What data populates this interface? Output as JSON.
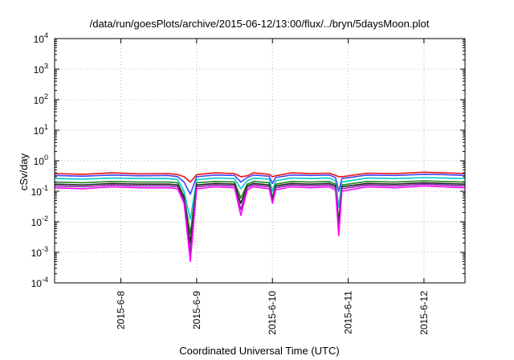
{
  "chart_data": {
    "type": "line",
    "title": "/data/run/goesPlots/archive/2015-06-12/13:00/flux/../bryn/5daysMoon.plot",
    "xlabel": "Coordinated Universal Time (UTC)",
    "ylabel": "cSv/day",
    "yscale": "log",
    "xlim": [
      "2015-06-07 03:00",
      "2015-06-12 13:00"
    ],
    "ylim": [
      0.0001,
      10000
    ],
    "grid": true,
    "legend": "none",
    "y_ticks": [
      {
        "base": "10",
        "exp": "-4",
        "value": 0.0001
      },
      {
        "base": "10",
        "exp": "-3",
        "value": 0.001
      },
      {
        "base": "10",
        "exp": "-2",
        "value": 0.01
      },
      {
        "base": "10",
        "exp": "-1",
        "value": 0.1
      },
      {
        "base": "10",
        "exp": "0",
        "value": 1
      },
      {
        "base": "10",
        "exp": "1",
        "value": 10
      },
      {
        "base": "10",
        "exp": "2",
        "value": 100
      },
      {
        "base": "10",
        "exp": "3",
        "value": 1000
      },
      {
        "base": "10",
        "exp": "4",
        "value": 10000
      }
    ],
    "x_ticks": [
      {
        "label": "2015-6-8",
        "value": "2015-06-08 00:00"
      },
      {
        "label": "2015-6-9",
        "value": "2015-06-09 00:00"
      },
      {
        "label": "2015-6-10",
        "value": "2015-06-10 00:00"
      },
      {
        "label": "2015-6-11",
        "value": "2015-06-11 00:00"
      },
      {
        "label": "2015-6-12",
        "value": "2015-06-12 00:00"
      }
    ],
    "x": [
      "2015-06-07 03:00",
      "2015-06-07 12:00",
      "2015-06-07 21:00",
      "2015-06-08 06:00",
      "2015-06-08 15:00",
      "2015-06-08 18:00",
      "2015-06-08 20:00",
      "2015-06-08 22:00",
      "2015-06-09 00:00",
      "2015-06-09 06:00",
      "2015-06-09 12:00",
      "2015-06-09 14:00",
      "2015-06-09 16:00",
      "2015-06-09 18:00",
      "2015-06-09 23:00",
      "2015-06-10 00:00",
      "2015-06-10 01:00",
      "2015-06-10 06:00",
      "2015-06-10 12:00",
      "2015-06-10 18:00",
      "2015-06-10 20:00",
      "2015-06-10 21:00",
      "2015-06-10 22:00",
      "2015-06-11 06:00",
      "2015-06-11 15:00",
      "2015-06-12 00:00",
      "2015-06-12 06:00",
      "2015-06-12 13:00"
    ],
    "series": [
      {
        "color": "#ee1111",
        "values": [
          0.38,
          0.36,
          0.4,
          0.37,
          0.38,
          0.35,
          0.3,
          0.2,
          0.35,
          0.4,
          0.38,
          0.3,
          0.32,
          0.4,
          0.36,
          0.3,
          0.32,
          0.4,
          0.38,
          0.39,
          0.33,
          0.3,
          0.3,
          0.39,
          0.38,
          0.42,
          0.4,
          0.38
        ]
      },
      {
        "color": "#4444ff",
        "values": [
          0.33,
          0.31,
          0.34,
          0.32,
          0.33,
          0.3,
          0.2,
          0.08,
          0.3,
          0.34,
          0.33,
          0.2,
          0.28,
          0.34,
          0.31,
          0.18,
          0.28,
          0.34,
          0.33,
          0.34,
          0.28,
          0.1,
          0.26,
          0.34,
          0.33,
          0.36,
          0.35,
          0.33
        ]
      },
      {
        "color": "#00cccc",
        "values": [
          0.26,
          0.25,
          0.27,
          0.26,
          0.26,
          0.24,
          0.1,
          0.012,
          0.24,
          0.27,
          0.26,
          0.12,
          0.22,
          0.27,
          0.25,
          0.1,
          0.22,
          0.27,
          0.26,
          0.27,
          0.22,
          0.03,
          0.2,
          0.27,
          0.26,
          0.28,
          0.27,
          0.26
        ]
      },
      {
        "color": "#228822",
        "values": [
          0.2,
          0.19,
          0.21,
          0.2,
          0.2,
          0.19,
          0.07,
          0.004,
          0.19,
          0.21,
          0.2,
          0.06,
          0.17,
          0.21,
          0.19,
          0.06,
          0.17,
          0.21,
          0.2,
          0.21,
          0.17,
          0.01,
          0.16,
          0.21,
          0.2,
          0.22,
          0.21,
          0.2
        ]
      },
      {
        "color": "#222222",
        "values": [
          0.17,
          0.16,
          0.18,
          0.17,
          0.17,
          0.16,
          0.06,
          0.002,
          0.16,
          0.18,
          0.17,
          0.04,
          0.15,
          0.18,
          0.16,
          0.05,
          0.15,
          0.18,
          0.17,
          0.18,
          0.15,
          0.008,
          0.14,
          0.18,
          0.17,
          0.19,
          0.18,
          0.17
        ]
      },
      {
        "color": "#8822aa",
        "values": [
          0.15,
          0.14,
          0.16,
          0.15,
          0.15,
          0.14,
          0.05,
          0.001,
          0.14,
          0.16,
          0.15,
          0.025,
          0.13,
          0.16,
          0.14,
          0.045,
          0.13,
          0.16,
          0.15,
          0.16,
          0.13,
          0.005,
          0.12,
          0.16,
          0.15,
          0.17,
          0.16,
          0.15
        ]
      },
      {
        "color": "#ff00ff",
        "values": [
          0.13,
          0.12,
          0.14,
          0.13,
          0.13,
          0.12,
          0.04,
          0.0005,
          0.12,
          0.14,
          0.13,
          0.016,
          0.11,
          0.14,
          0.12,
          0.04,
          0.11,
          0.14,
          0.13,
          0.14,
          0.11,
          0.0035,
          0.1,
          0.14,
          0.13,
          0.15,
          0.14,
          0.13
        ]
      }
    ]
  }
}
